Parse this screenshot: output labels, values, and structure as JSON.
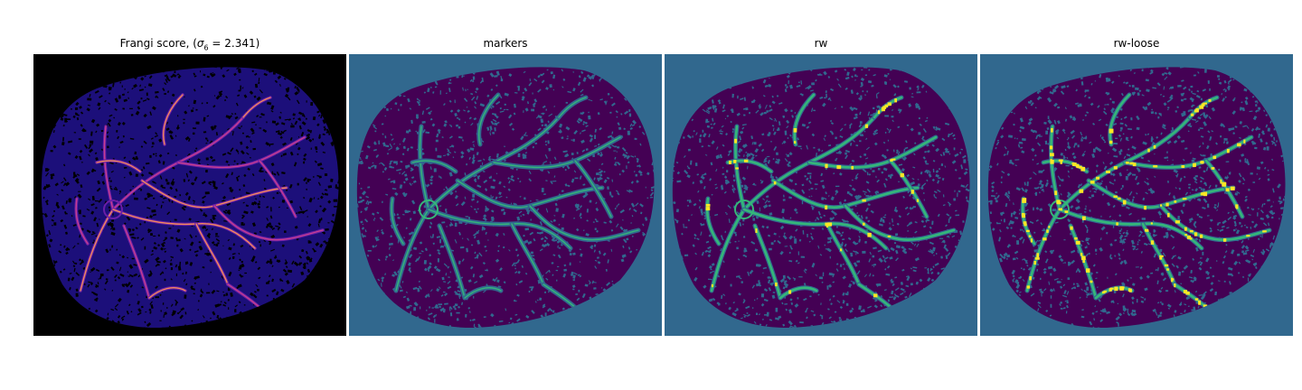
{
  "panels": [
    {
      "title_prefix": "Frangi score, (",
      "title_symbol": "σ",
      "title_subscript": "6",
      "title_suffix": " = 2.341)",
      "background_color": "#000000",
      "tissue_color": "#1c0f7a",
      "texture_color": "#000000",
      "vessel_colors": [
        "#6a1ea8",
        "#c43f8e",
        "#f08a5a"
      ],
      "colormap": "plasma"
    },
    {
      "title": "markers",
      "background_color": "#31688e",
      "tissue_color": "#440154",
      "texture_color": "#31688e",
      "vessel_colors": [
        "#35b779"
      ],
      "colormap": "viridis"
    },
    {
      "title": "rw",
      "background_color": "#31688e",
      "tissue_color": "#440154",
      "texture_color": "#31688e",
      "vessel_colors": [
        "#35b779",
        "#fde725"
      ],
      "colormap": "viridis"
    },
    {
      "title": "rw-loose",
      "background_color": "#31688e",
      "tissue_color": "#440154",
      "texture_color": "#31688e",
      "vessel_colors": [
        "#35b779",
        "#fde725"
      ],
      "colormap": "viridis"
    }
  ]
}
